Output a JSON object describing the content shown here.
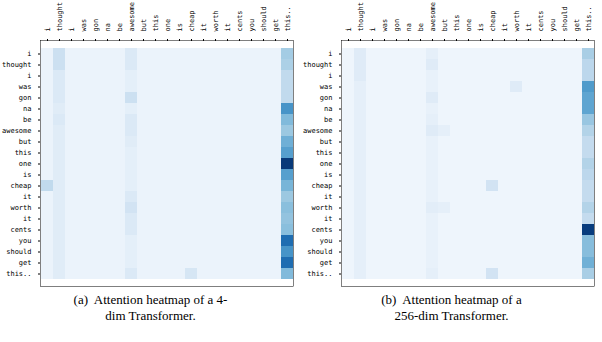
{
  "chart_data": [
    {
      "type": "heatmap",
      "categories": [
        "i",
        "thought",
        "i",
        "was",
        "gon",
        "na",
        "be",
        "awesome",
        "but",
        "this",
        "one",
        "is",
        "cheap",
        "it",
        "worth",
        "it",
        "cents",
        "you",
        "should",
        "get",
        "this.."
      ],
      "color_domain": [
        0,
        0.85
      ],
      "caption": [
        "(a)  Attention heatmap of a 4-",
        "dim Transformer."
      ],
      "values": [
        [
          0.05,
          0.18,
          0.05,
          0.05,
          0.05,
          0.05,
          0.05,
          0.12,
          0.05,
          0.05,
          0.05,
          0.05,
          0.05,
          0.05,
          0.05,
          0.05,
          0.05,
          0.05,
          0.05,
          0.05,
          0.3
        ],
        [
          0.05,
          0.18,
          0.05,
          0.05,
          0.05,
          0.05,
          0.05,
          0.12,
          0.05,
          0.05,
          0.05,
          0.05,
          0.05,
          0.05,
          0.05,
          0.05,
          0.05,
          0.05,
          0.05,
          0.05,
          0.28
        ],
        [
          0.05,
          0.12,
          0.05,
          0.05,
          0.05,
          0.05,
          0.05,
          0.08,
          0.05,
          0.05,
          0.05,
          0.05,
          0.05,
          0.05,
          0.05,
          0.05,
          0.05,
          0.05,
          0.05,
          0.05,
          0.22
        ],
        [
          0.05,
          0.12,
          0.05,
          0.05,
          0.05,
          0.05,
          0.05,
          0.08,
          0.05,
          0.05,
          0.05,
          0.05,
          0.05,
          0.05,
          0.05,
          0.05,
          0.05,
          0.05,
          0.05,
          0.05,
          0.22
        ],
        [
          0.05,
          0.12,
          0.05,
          0.05,
          0.05,
          0.05,
          0.05,
          0.18,
          0.05,
          0.05,
          0.05,
          0.05,
          0.05,
          0.05,
          0.05,
          0.05,
          0.05,
          0.05,
          0.05,
          0.05,
          0.22
        ],
        [
          0.05,
          0.1,
          0.05,
          0.05,
          0.05,
          0.05,
          0.05,
          0.08,
          0.05,
          0.05,
          0.05,
          0.05,
          0.05,
          0.05,
          0.05,
          0.05,
          0.05,
          0.05,
          0.05,
          0.05,
          0.52
        ],
        [
          0.05,
          0.12,
          0.05,
          0.05,
          0.05,
          0.05,
          0.05,
          0.12,
          0.05,
          0.05,
          0.05,
          0.05,
          0.05,
          0.05,
          0.05,
          0.05,
          0.05,
          0.05,
          0.05,
          0.05,
          0.38
        ],
        [
          0.05,
          0.1,
          0.05,
          0.05,
          0.05,
          0.05,
          0.05,
          0.12,
          0.05,
          0.05,
          0.05,
          0.05,
          0.05,
          0.05,
          0.05,
          0.05,
          0.05,
          0.05,
          0.05,
          0.05,
          0.32
        ],
        [
          0.05,
          0.1,
          0.05,
          0.05,
          0.05,
          0.05,
          0.05,
          0.1,
          0.05,
          0.05,
          0.05,
          0.05,
          0.05,
          0.05,
          0.05,
          0.05,
          0.05,
          0.05,
          0.05,
          0.05,
          0.42
        ],
        [
          0.05,
          0.1,
          0.05,
          0.05,
          0.05,
          0.05,
          0.05,
          0.08,
          0.05,
          0.05,
          0.05,
          0.05,
          0.05,
          0.05,
          0.05,
          0.05,
          0.05,
          0.05,
          0.05,
          0.05,
          0.48
        ],
        [
          0.05,
          0.1,
          0.05,
          0.05,
          0.05,
          0.05,
          0.05,
          0.08,
          0.05,
          0.05,
          0.05,
          0.05,
          0.05,
          0.05,
          0.05,
          0.05,
          0.05,
          0.05,
          0.05,
          0.05,
          0.82
        ],
        [
          0.05,
          0.1,
          0.05,
          0.05,
          0.05,
          0.05,
          0.05,
          0.08,
          0.05,
          0.05,
          0.05,
          0.05,
          0.05,
          0.05,
          0.05,
          0.05,
          0.05,
          0.05,
          0.05,
          0.05,
          0.48
        ],
        [
          0.22,
          0.1,
          0.05,
          0.05,
          0.05,
          0.05,
          0.05,
          0.08,
          0.05,
          0.05,
          0.05,
          0.05,
          0.05,
          0.05,
          0.05,
          0.05,
          0.05,
          0.05,
          0.05,
          0.05,
          0.4
        ],
        [
          0.05,
          0.1,
          0.05,
          0.05,
          0.05,
          0.05,
          0.05,
          0.12,
          0.05,
          0.05,
          0.05,
          0.05,
          0.05,
          0.05,
          0.05,
          0.05,
          0.05,
          0.05,
          0.05,
          0.05,
          0.32
        ],
        [
          0.05,
          0.1,
          0.05,
          0.05,
          0.05,
          0.05,
          0.05,
          0.16,
          0.05,
          0.05,
          0.05,
          0.05,
          0.05,
          0.05,
          0.05,
          0.05,
          0.05,
          0.05,
          0.05,
          0.05,
          0.36
        ],
        [
          0.05,
          0.1,
          0.05,
          0.05,
          0.05,
          0.05,
          0.05,
          0.12,
          0.05,
          0.05,
          0.05,
          0.05,
          0.05,
          0.05,
          0.05,
          0.05,
          0.05,
          0.05,
          0.05,
          0.05,
          0.34
        ],
        [
          0.05,
          0.1,
          0.05,
          0.05,
          0.05,
          0.05,
          0.05,
          0.12,
          0.05,
          0.05,
          0.05,
          0.05,
          0.05,
          0.05,
          0.05,
          0.05,
          0.05,
          0.05,
          0.05,
          0.05,
          0.36
        ],
        [
          0.05,
          0.1,
          0.05,
          0.05,
          0.05,
          0.05,
          0.05,
          0.08,
          0.05,
          0.05,
          0.05,
          0.05,
          0.05,
          0.05,
          0.05,
          0.05,
          0.05,
          0.05,
          0.05,
          0.05,
          0.65
        ],
        [
          0.05,
          0.1,
          0.05,
          0.05,
          0.05,
          0.05,
          0.05,
          0.08,
          0.05,
          0.05,
          0.05,
          0.05,
          0.05,
          0.05,
          0.05,
          0.05,
          0.05,
          0.05,
          0.05,
          0.05,
          0.52
        ],
        [
          0.05,
          0.1,
          0.05,
          0.05,
          0.05,
          0.05,
          0.05,
          0.08,
          0.05,
          0.05,
          0.05,
          0.05,
          0.05,
          0.05,
          0.05,
          0.05,
          0.05,
          0.05,
          0.05,
          0.05,
          0.65
        ],
        [
          0.05,
          0.1,
          0.05,
          0.05,
          0.05,
          0.05,
          0.05,
          0.12,
          0.05,
          0.05,
          0.05,
          0.05,
          0.14,
          0.05,
          0.05,
          0.05,
          0.05,
          0.05,
          0.05,
          0.05,
          0.38
        ]
      ]
    },
    {
      "type": "heatmap",
      "categories": [
        "i",
        "thought",
        "i",
        "was",
        "gon",
        "na",
        "be",
        "awesome",
        "but",
        "this",
        "one",
        "is",
        "cheap",
        "it",
        "worth",
        "it",
        "cents",
        "you",
        "should",
        "get",
        "this.."
      ],
      "color_domain": [
        0,
        0.65
      ],
      "caption": [
        "(b)  Attention heatmap of a",
        "256-dim Transformer."
      ],
      "values": [
        [
          0.03,
          0.08,
          0.03,
          0.03,
          0.03,
          0.03,
          0.03,
          0.06,
          0.03,
          0.03,
          0.03,
          0.03,
          0.03,
          0.03,
          0.03,
          0.03,
          0.03,
          0.03,
          0.03,
          0.03,
          0.22
        ],
        [
          0.03,
          0.08,
          0.03,
          0.03,
          0.03,
          0.03,
          0.03,
          0.08,
          0.03,
          0.03,
          0.03,
          0.03,
          0.03,
          0.03,
          0.03,
          0.03,
          0.03,
          0.03,
          0.03,
          0.03,
          0.18
        ],
        [
          0.03,
          0.08,
          0.03,
          0.03,
          0.03,
          0.03,
          0.03,
          0.05,
          0.03,
          0.03,
          0.03,
          0.03,
          0.03,
          0.03,
          0.03,
          0.03,
          0.03,
          0.03,
          0.03,
          0.03,
          0.18
        ],
        [
          0.03,
          0.06,
          0.03,
          0.03,
          0.03,
          0.03,
          0.03,
          0.05,
          0.03,
          0.03,
          0.03,
          0.03,
          0.03,
          0.03,
          0.08,
          0.03,
          0.03,
          0.03,
          0.03,
          0.03,
          0.38
        ],
        [
          0.03,
          0.06,
          0.03,
          0.03,
          0.03,
          0.03,
          0.03,
          0.08,
          0.03,
          0.03,
          0.03,
          0.03,
          0.03,
          0.03,
          0.03,
          0.03,
          0.03,
          0.03,
          0.03,
          0.03,
          0.35
        ],
        [
          0.03,
          0.06,
          0.03,
          0.03,
          0.03,
          0.03,
          0.03,
          0.05,
          0.03,
          0.03,
          0.03,
          0.03,
          0.03,
          0.03,
          0.03,
          0.03,
          0.03,
          0.03,
          0.03,
          0.03,
          0.35
        ],
        [
          0.03,
          0.06,
          0.03,
          0.03,
          0.03,
          0.03,
          0.03,
          0.06,
          0.03,
          0.03,
          0.03,
          0.03,
          0.03,
          0.03,
          0.03,
          0.03,
          0.03,
          0.03,
          0.03,
          0.03,
          0.25
        ],
        [
          0.03,
          0.06,
          0.03,
          0.03,
          0.03,
          0.03,
          0.03,
          0.08,
          0.06,
          0.03,
          0.03,
          0.03,
          0.03,
          0.03,
          0.03,
          0.03,
          0.03,
          0.03,
          0.03,
          0.03,
          0.2
        ],
        [
          0.03,
          0.06,
          0.03,
          0.03,
          0.03,
          0.03,
          0.03,
          0.05,
          0.03,
          0.03,
          0.03,
          0.03,
          0.03,
          0.03,
          0.03,
          0.03,
          0.03,
          0.03,
          0.03,
          0.03,
          0.16
        ],
        [
          0.03,
          0.06,
          0.03,
          0.03,
          0.03,
          0.03,
          0.03,
          0.05,
          0.03,
          0.03,
          0.03,
          0.03,
          0.03,
          0.03,
          0.03,
          0.03,
          0.03,
          0.03,
          0.03,
          0.03,
          0.16
        ],
        [
          0.03,
          0.06,
          0.03,
          0.03,
          0.03,
          0.03,
          0.03,
          0.05,
          0.03,
          0.03,
          0.03,
          0.03,
          0.03,
          0.03,
          0.03,
          0.03,
          0.03,
          0.03,
          0.03,
          0.03,
          0.2
        ],
        [
          0.03,
          0.06,
          0.03,
          0.03,
          0.03,
          0.03,
          0.03,
          0.05,
          0.03,
          0.03,
          0.03,
          0.03,
          0.03,
          0.03,
          0.03,
          0.03,
          0.03,
          0.03,
          0.03,
          0.03,
          0.18
        ],
        [
          0.03,
          0.06,
          0.03,
          0.03,
          0.03,
          0.03,
          0.03,
          0.05,
          0.03,
          0.03,
          0.03,
          0.03,
          0.12,
          0.03,
          0.03,
          0.03,
          0.03,
          0.03,
          0.03,
          0.03,
          0.16
        ],
        [
          0.03,
          0.06,
          0.03,
          0.03,
          0.03,
          0.03,
          0.03,
          0.05,
          0.03,
          0.03,
          0.03,
          0.03,
          0.03,
          0.03,
          0.03,
          0.03,
          0.03,
          0.03,
          0.03,
          0.03,
          0.16
        ],
        [
          0.03,
          0.06,
          0.03,
          0.03,
          0.03,
          0.03,
          0.03,
          0.07,
          0.06,
          0.03,
          0.03,
          0.03,
          0.03,
          0.03,
          0.03,
          0.03,
          0.03,
          0.03,
          0.03,
          0.03,
          0.2
        ],
        [
          0.03,
          0.06,
          0.03,
          0.03,
          0.03,
          0.03,
          0.03,
          0.05,
          0.03,
          0.03,
          0.03,
          0.03,
          0.03,
          0.03,
          0.03,
          0.03,
          0.03,
          0.03,
          0.03,
          0.03,
          0.16
        ],
        [
          0.03,
          0.06,
          0.03,
          0.03,
          0.03,
          0.03,
          0.03,
          0.05,
          0.03,
          0.03,
          0.03,
          0.03,
          0.03,
          0.03,
          0.03,
          0.03,
          0.03,
          0.03,
          0.03,
          0.03,
          0.62
        ],
        [
          0.03,
          0.06,
          0.03,
          0.03,
          0.03,
          0.03,
          0.03,
          0.05,
          0.03,
          0.03,
          0.03,
          0.03,
          0.03,
          0.03,
          0.03,
          0.03,
          0.03,
          0.03,
          0.03,
          0.03,
          0.28
        ],
        [
          0.03,
          0.06,
          0.03,
          0.03,
          0.03,
          0.03,
          0.03,
          0.05,
          0.03,
          0.03,
          0.03,
          0.03,
          0.03,
          0.03,
          0.03,
          0.03,
          0.03,
          0.03,
          0.03,
          0.03,
          0.28
        ],
        [
          0.03,
          0.06,
          0.03,
          0.03,
          0.03,
          0.03,
          0.03,
          0.05,
          0.03,
          0.03,
          0.03,
          0.03,
          0.03,
          0.03,
          0.03,
          0.03,
          0.03,
          0.03,
          0.03,
          0.03,
          0.32
        ],
        [
          0.03,
          0.06,
          0.03,
          0.03,
          0.03,
          0.03,
          0.03,
          0.06,
          0.03,
          0.03,
          0.03,
          0.03,
          0.12,
          0.03,
          0.03,
          0.03,
          0.03,
          0.03,
          0.03,
          0.03,
          0.22
        ]
      ]
    }
  ]
}
